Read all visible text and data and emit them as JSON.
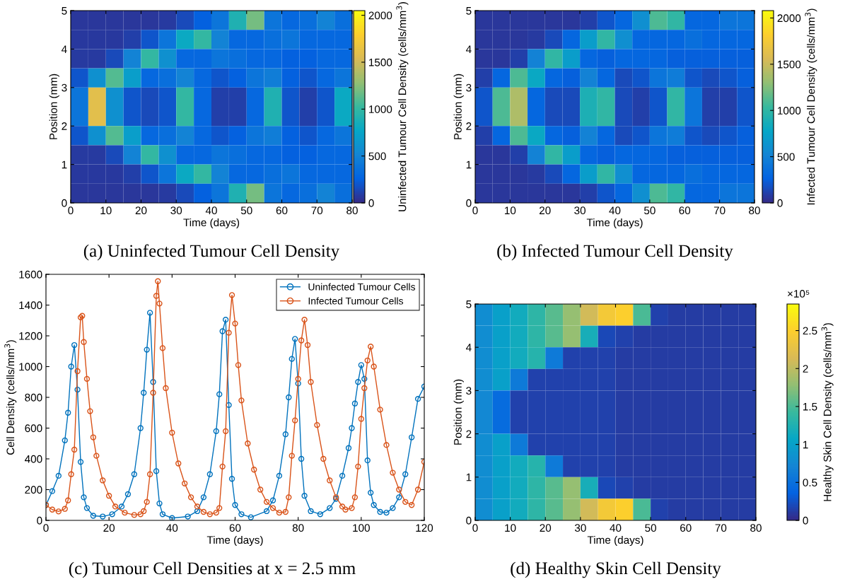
{
  "chart_data": [
    {
      "type": "heatmap",
      "xlabel": "Time (days)",
      "ylabel": "Position (mm)",
      "clabel": "Uninfected Tumour Cell Density (cells/mm$^{3}$)",
      "xlim": [
        0,
        80
      ],
      "xticks": [
        0,
        10,
        20,
        30,
        40,
        50,
        60,
        70,
        80
      ],
      "ylim": [
        0,
        5
      ],
      "yticks": [
        0,
        1,
        2,
        3,
        4,
        5
      ],
      "clim": [
        0,
        2050
      ],
      "cticks": [
        0,
        500,
        1000,
        1500,
        2000
      ],
      "cells": [
        [
          60,
          60,
          60,
          60,
          60,
          80,
          150,
          250,
          400,
          900,
          1200,
          400,
          300,
          350,
          500,
          350
        ],
        [
          70,
          70,
          70,
          100,
          200,
          400,
          800,
          1000,
          500,
          300,
          300,
          350,
          400,
          300,
          300,
          300
        ],
        [
          80,
          80,
          150,
          500,
          1000,
          600,
          300,
          300,
          400,
          350,
          300,
          300,
          250,
          250,
          300,
          300
        ],
        [
          200,
          600,
          1100,
          700,
          300,
          350,
          500,
          300,
          200,
          250,
          400,
          450,
          250,
          200,
          300,
          400
        ],
        [
          400,
          1600,
          600,
          200,
          150,
          200,
          1000,
          300,
          100,
          100,
          300,
          900,
          200,
          100,
          200,
          800
        ],
        [
          400,
          1600,
          600,
          200,
          150,
          200,
          1000,
          300,
          100,
          100,
          300,
          900,
          200,
          100,
          200,
          800
        ],
        [
          200,
          600,
          1100,
          700,
          300,
          350,
          500,
          300,
          200,
          250,
          400,
          450,
          250,
          200,
          300,
          400
        ],
        [
          80,
          80,
          150,
          500,
          1000,
          600,
          300,
          300,
          400,
          350,
          300,
          300,
          250,
          250,
          300,
          300
        ],
        [
          70,
          70,
          70,
          100,
          200,
          400,
          800,
          1000,
          500,
          300,
          300,
          350,
          400,
          300,
          300,
          300
        ],
        [
          60,
          60,
          60,
          60,
          60,
          80,
          150,
          250,
          400,
          900,
          1200,
          400,
          300,
          350,
          500,
          350
        ]
      ],
      "annotations": [
        "(a) Uninfected Tumour Cell Density"
      ]
    },
    {
      "type": "heatmap",
      "xlabel": "Time (days)",
      "ylabel": "Position (mm)",
      "clabel": "Infected Tumour Cell Density (cells/mm$^{3}$)",
      "xlim": [
        0,
        80
      ],
      "xticks": [
        0,
        10,
        20,
        30,
        40,
        50,
        60,
        70,
        80
      ],
      "ylim": [
        0,
        5
      ],
      "yticks": [
        0,
        1,
        2,
        3,
        4,
        5
      ],
      "clim": [
        0,
        2080
      ],
      "cticks": [
        0,
        500,
        1000,
        1500,
        2000
      ],
      "cells": [
        [
          60,
          60,
          60,
          60,
          60,
          60,
          100,
          200,
          300,
          600,
          1100,
          1000,
          300,
          300,
          400,
          400
        ],
        [
          60,
          60,
          60,
          80,
          150,
          300,
          700,
          1000,
          600,
          300,
          300,
          300,
          350,
          300,
          300,
          300
        ],
        [
          60,
          60,
          100,
          500,
          1000,
          700,
          300,
          250,
          300,
          300,
          300,
          250,
          250,
          250,
          250,
          250
        ],
        [
          100,
          300,
          1100,
          800,
          300,
          250,
          500,
          300,
          150,
          200,
          400,
          450,
          200,
          150,
          200,
          250
        ],
        [
          200,
          1100,
          1400,
          300,
          150,
          150,
          900,
          1000,
          150,
          100,
          200,
          1000,
          400,
          100,
          100,
          200
        ],
        [
          200,
          1100,
          1400,
          300,
          150,
          150,
          900,
          1000,
          150,
          100,
          200,
          1000,
          400,
          100,
          100,
          200
        ],
        [
          100,
          300,
          1100,
          800,
          300,
          250,
          500,
          300,
          150,
          200,
          400,
          450,
          200,
          150,
          200,
          250
        ],
        [
          60,
          60,
          100,
          500,
          1000,
          700,
          300,
          250,
          300,
          300,
          300,
          250,
          250,
          250,
          250,
          250
        ],
        [
          60,
          60,
          60,
          80,
          150,
          300,
          700,
          1000,
          600,
          300,
          300,
          300,
          350,
          300,
          300,
          300
        ],
        [
          60,
          60,
          60,
          60,
          60,
          60,
          100,
          200,
          300,
          600,
          1100,
          1000,
          300,
          300,
          400,
          400
        ]
      ],
      "annotations": [
        "(b) Infected Tumour Cell Density"
      ]
    },
    {
      "type": "line",
      "xlabel": "Time (days)",
      "ylabel": "Cell Density (cells/mm$^{3}$)",
      "xlim": [
        0,
        120
      ],
      "xticks": [
        0,
        20,
        40,
        60,
        80,
        100,
        120
      ],
      "ylim": [
        0,
        1600
      ],
      "yticks": [
        0,
        200,
        400,
        600,
        800,
        1000,
        1200,
        1400,
        1600
      ],
      "marker": "circle",
      "legend": "top right",
      "series": [
        {
          "name": "Uninfected Tumour Cells",
          "color": "#0072bd",
          "x": [
            0,
            2,
            4,
            6,
            7,
            8,
            9,
            10,
            11,
            12,
            13,
            15,
            18,
            21,
            24,
            26,
            28,
            30,
            31,
            32,
            33,
            34,
            35,
            36,
            37,
            40,
            45,
            48,
            50,
            52,
            54,
            55,
            56,
            57,
            58,
            59,
            60,
            62,
            65,
            70,
            72,
            74,
            76,
            77,
            78,
            79,
            80,
            81,
            82,
            84,
            87,
            90,
            92,
            94,
            96,
            97,
            98,
            99,
            100,
            101,
            102,
            103,
            104,
            106,
            108,
            110,
            112,
            114,
            116,
            118,
            120
          ],
          "values": [
            100,
            190,
            290,
            520,
            700,
            1000,
            1140,
            850,
            380,
            150,
            80,
            30,
            25,
            40,
            90,
            170,
            300,
            600,
            830,
            1110,
            1350,
            900,
            320,
            110,
            40,
            15,
            25,
            60,
            150,
            300,
            580,
            820,
            1230,
            1305,
            750,
            270,
            100,
            40,
            20,
            60,
            130,
            290,
            560,
            800,
            1050,
            1180,
            890,
            400,
            160,
            60,
            40,
            80,
            140,
            290,
            470,
            600,
            760,
            900,
            1010,
            920,
            390,
            180,
            100,
            55,
            50,
            80,
            150,
            300,
            540,
            790,
            870
          ]
        },
        {
          "name": "Infected Tumour Cells",
          "color": "#d95319",
          "x": [
            0,
            2,
            4,
            6,
            7,
            8,
            9,
            10,
            11,
            11.5,
            12,
            13,
            14,
            15,
            16,
            18,
            20,
            22,
            25,
            28,
            30,
            31,
            32,
            33,
            34,
            35,
            35.5,
            36,
            37,
            38,
            40,
            42,
            44,
            46,
            48,
            50,
            52,
            54,
            55,
            56,
            57,
            58,
            59,
            60,
            61,
            62,
            64,
            66,
            68,
            70,
            72,
            74,
            76,
            77,
            78,
            79,
            80,
            81,
            82,
            83,
            84,
            86,
            88,
            90,
            92,
            94,
            95,
            97,
            98,
            99,
            100,
            101,
            102,
            103,
            104,
            106,
            108,
            110,
            112,
            114,
            116,
            118,
            120
          ],
          "values": [
            100,
            70,
            58,
            75,
            130,
            300,
            460,
            970,
            1320,
            1330,
            1160,
            920,
            710,
            540,
            420,
            260,
            160,
            90,
            50,
            35,
            40,
            60,
            120,
            300,
            830,
            1460,
            1555,
            1410,
            1120,
            860,
            570,
            370,
            240,
            150,
            90,
            55,
            40,
            50,
            80,
            350,
            580,
            1220,
            1465,
            1280,
            1010,
            780,
            500,
            330,
            200,
            120,
            80,
            50,
            55,
            150,
            420,
            650,
            920,
            1170,
            1305,
            1140,
            900,
            620,
            400,
            260,
            150,
            90,
            70,
            80,
            150,
            350,
            660,
            860,
            1040,
            1130,
            1000,
            720,
            490,
            310,
            200,
            120,
            100,
            200,
            380
          ]
        }
      ],
      "annotations": [
        "(c) Tumour Cell Densities at x = 2.5 mm"
      ]
    },
    {
      "type": "heatmap",
      "xlabel": "Time (days)",
      "ylabel": "Position (mm)",
      "clabel": "Healthy Skin Cell Density (cells/mm$^{3}$)",
      "xlim": [
        0,
        80
      ],
      "xticks": [
        0,
        10,
        20,
        30,
        40,
        50,
        60,
        70,
        80
      ],
      "ylim": [
        0,
        5
      ],
      "yticks": [
        0,
        1,
        2,
        3,
        4,
        5
      ],
      "clim": [
        0,
        2.85
      ],
      "cticks": [
        0,
        0.5,
        1,
        1.5,
        2,
        2.5
      ],
      "cells": [
        [
          0.8,
          1.0,
          1.15,
          1.35,
          1.55,
          1.8,
          2.1,
          2.4,
          2.5,
          1.5,
          0.15,
          0.12,
          0.12,
          0.12,
          0.12,
          0.12
        ],
        [
          0.8,
          1.0,
          1.15,
          1.35,
          1.55,
          1.8,
          1.2,
          0.2,
          0.15,
          0.12,
          0.12,
          0.12,
          0.12,
          0.12,
          0.12,
          0.12
        ],
        [
          0.8,
          1.0,
          1.15,
          1.3,
          0.6,
          0.15,
          0.15,
          0.15,
          0.12,
          0.12,
          0.12,
          0.12,
          0.12,
          0.12,
          0.12,
          0.12
        ],
        [
          0.8,
          1.0,
          0.6,
          0.15,
          0.15,
          0.15,
          0.15,
          0.15,
          0.12,
          0.12,
          0.12,
          0.12,
          0.12,
          0.12,
          0.12,
          0.12
        ],
        [
          0.75,
          0.45,
          0.15,
          0.15,
          0.15,
          0.15,
          0.15,
          0.15,
          0.12,
          0.12,
          0.12,
          0.12,
          0.12,
          0.12,
          0.12,
          0.12
        ],
        [
          0.75,
          0.45,
          0.15,
          0.15,
          0.15,
          0.15,
          0.15,
          0.15,
          0.12,
          0.12,
          0.12,
          0.12,
          0.12,
          0.12,
          0.12,
          0.12
        ],
        [
          0.8,
          1.0,
          0.6,
          0.15,
          0.15,
          0.15,
          0.15,
          0.15,
          0.12,
          0.12,
          0.12,
          0.12,
          0.12,
          0.12,
          0.12,
          0.12
        ],
        [
          0.8,
          1.0,
          1.15,
          1.3,
          0.6,
          0.15,
          0.15,
          0.15,
          0.12,
          0.12,
          0.12,
          0.12,
          0.12,
          0.12,
          0.12,
          0.12
        ],
        [
          0.8,
          1.0,
          1.15,
          1.35,
          1.55,
          1.8,
          1.2,
          0.2,
          0.15,
          0.12,
          0.12,
          0.12,
          0.12,
          0.12,
          0.12,
          0.12
        ],
        [
          0.8,
          1.0,
          1.15,
          1.35,
          1.55,
          1.8,
          2.1,
          2.4,
          2.5,
          1.5,
          0.15,
          0.12,
          0.12,
          0.12,
          0.12,
          0.12
        ]
      ],
      "annotations": [
        "(d) Healthy Skin Cell Density",
        "×10⁵"
      ]
    }
  ]
}
